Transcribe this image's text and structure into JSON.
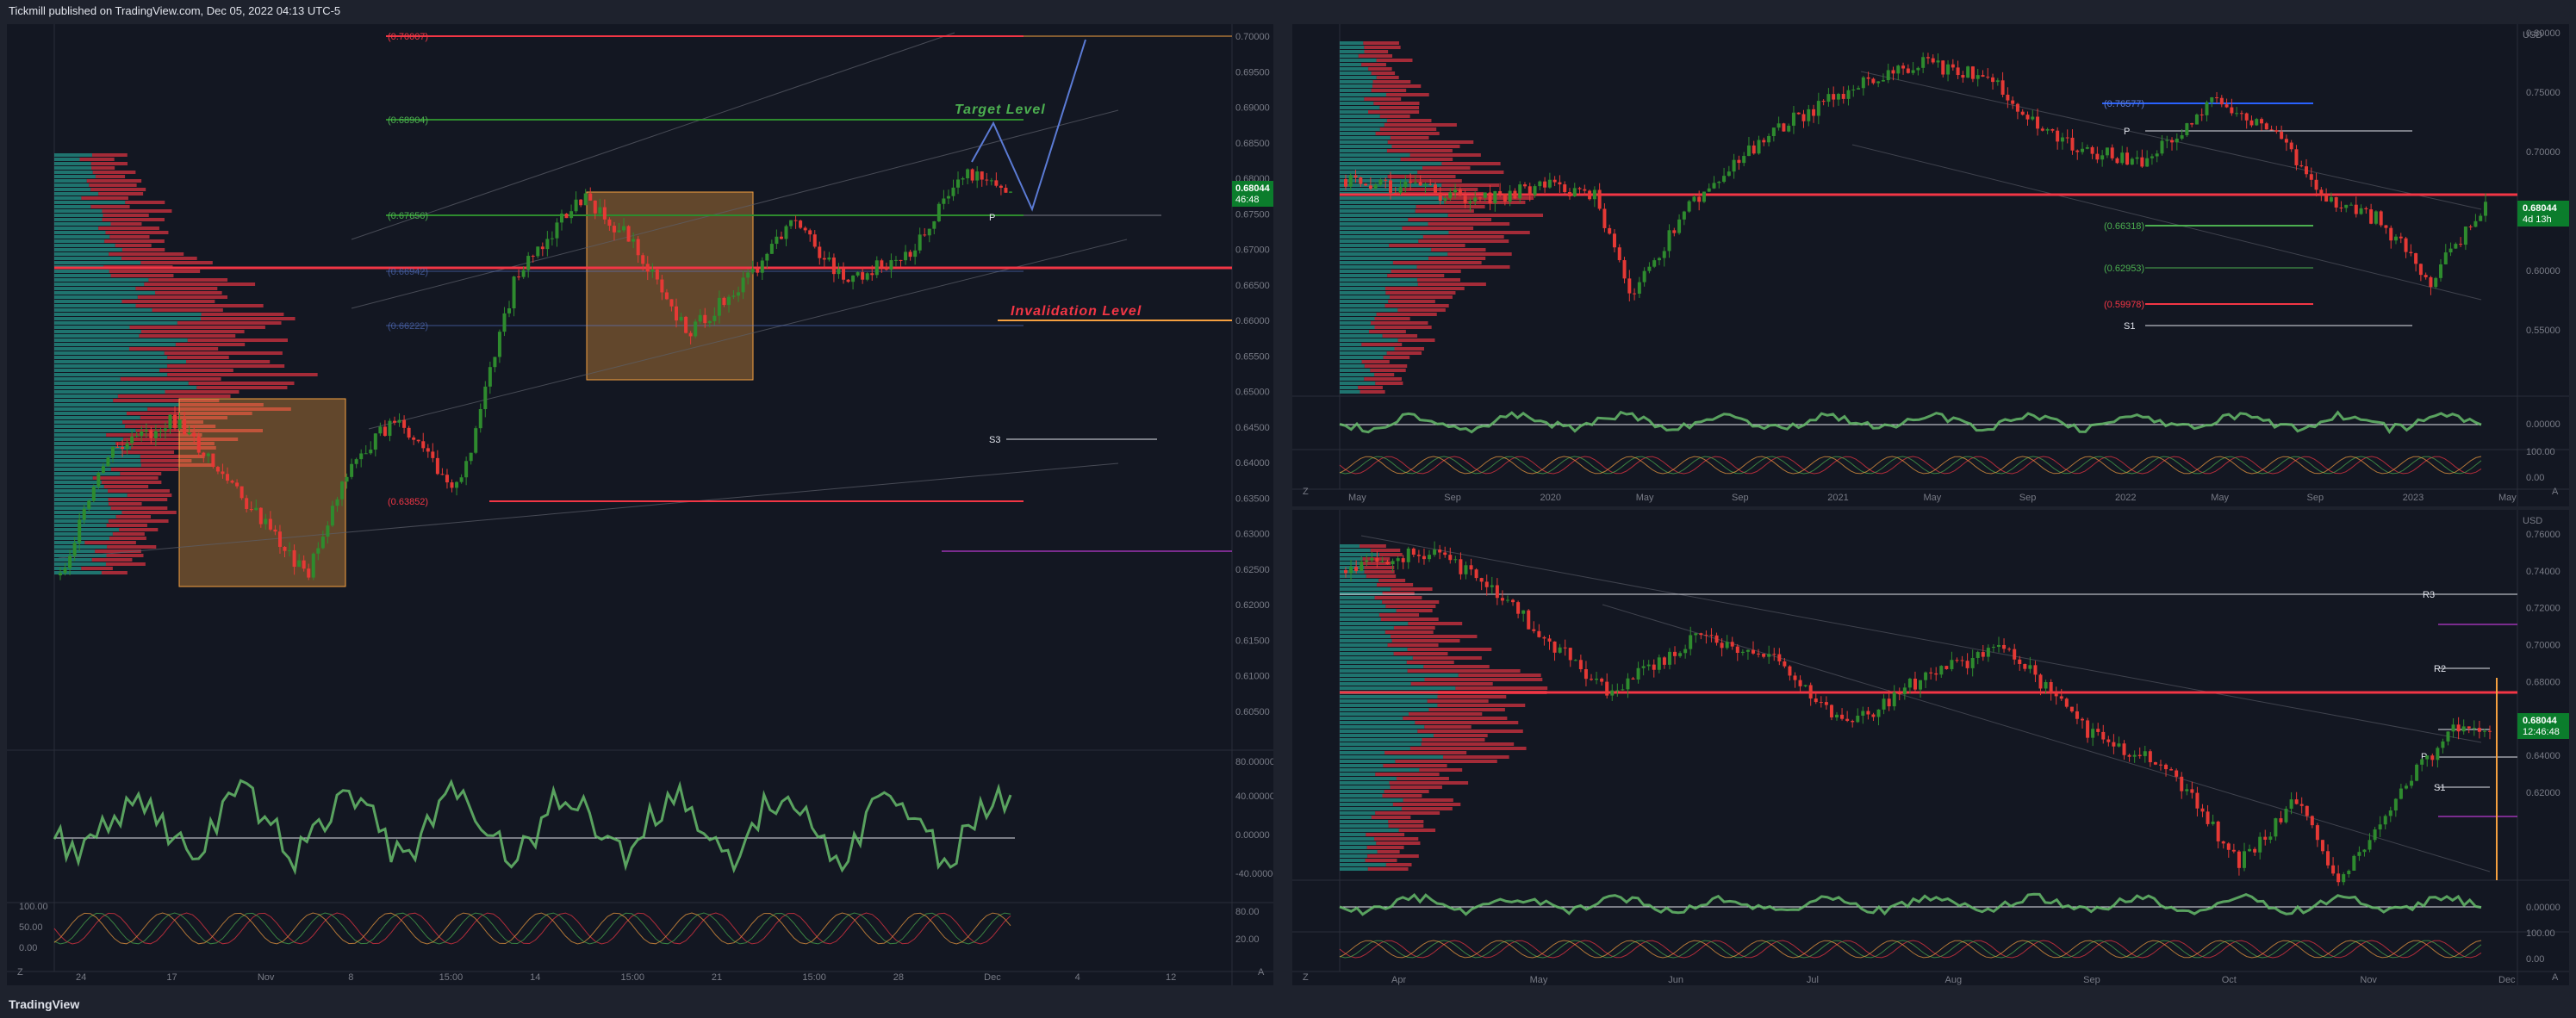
{
  "header": {
    "publisher_text": "Tickmill published on TradingView.com, Dec 05, 2022 04:13 UTC-5"
  },
  "footer": {
    "logo_text": "TradingView"
  },
  "colors": {
    "up": "#26a69a",
    "green_candle": "#2e8b2e",
    "red_candle": "#e53935",
    "bg": "#131722",
    "grid": "#2a2e39",
    "orange_zone": "#f5a040",
    "price_badge": "#0b7d2c"
  },
  "left_panel": {
    "axis_labels": [
      "0.70000",
      "0.69500",
      "0.69000",
      "0.68500",
      "0.68000",
      "0.67500",
      "0.67000",
      "0.66500",
      "0.66000",
      "0.65500",
      "0.65000",
      "0.64500",
      "0.64000",
      "0.63500",
      "0.63000",
      "0.62500",
      "0.62000",
      "0.61500",
      "0.61000",
      "0.60500"
    ],
    "level_labels": {
      "l1": "(0.70007)",
      "l2": "(0.68904)",
      "l3": "(0.67656)",
      "l4": "(0.66942)",
      "l5": "(0.66222)",
      "l6": "(0.63852)",
      "s3": "S3",
      "p": "P"
    },
    "annotations": {
      "target": "Target Level",
      "invalidation": "Invalidation Level"
    },
    "price_badge": {
      "price": "0.68044",
      "time": "46:48"
    },
    "x_labels": [
      "24",
      "17",
      "Nov",
      "8",
      "15:00",
      "14",
      "15:00",
      "21",
      "15:00",
      "28",
      "Dec",
      "4",
      "12"
    ],
    "rsi_labels": [
      "80.00000",
      "40.00000",
      "0.00000",
      "-40.00000"
    ],
    "stoch_labels": [
      "100.00",
      "50.00",
      "0.00"
    ],
    "stoch_right": [
      "80.00",
      "20.00"
    ],
    "corner": "Z",
    "corner_right": "A"
  },
  "right_top_panel": {
    "currency": "USD",
    "axis_labels": [
      "0.80000",
      "0.75000",
      "0.70000",
      "0.65000",
      "0.60000",
      "0.55000"
    ],
    "level_labels": {
      "l1": "(0.76577)",
      "l2": "(0.66318)",
      "l3": "(0.62953)",
      "l4": "(0.59978)",
      "p": "P",
      "s1": "S1"
    },
    "price_badge": {
      "price": "0.68044",
      "time": "4d 13h"
    },
    "x_labels": [
      "May",
      "Sep",
      "2020",
      "May",
      "Sep",
      "2021",
      "May",
      "Sep",
      "2022",
      "May",
      "Sep",
      "2023",
      "May"
    ],
    "osc_labels": [
      "0.00000",
      "100.00",
      "0.00"
    ],
    "corner": "Z",
    "corner_right": "A"
  },
  "right_bottom_panel": {
    "currency": "USD",
    "axis_labels": [
      "0.76000",
      "0.74000",
      "0.72000",
      "0.70000",
      "0.68000",
      "0.66000",
      "0.64000",
      "0.62000"
    ],
    "level_labels": {
      "r3": "R3",
      "r2": "R2",
      "p": "P",
      "s1": "S1"
    },
    "price_badge": {
      "price": "0.68044",
      "time": "12:46:48"
    },
    "x_labels": [
      "Apr",
      "May",
      "Jun",
      "Jul",
      "Aug",
      "Sep",
      "Oct",
      "Nov",
      "Dec"
    ],
    "osc_labels": [
      "0.00000",
      "100.00",
      "0.00"
    ],
    "corner": "Z",
    "corner_right": "A"
  }
}
